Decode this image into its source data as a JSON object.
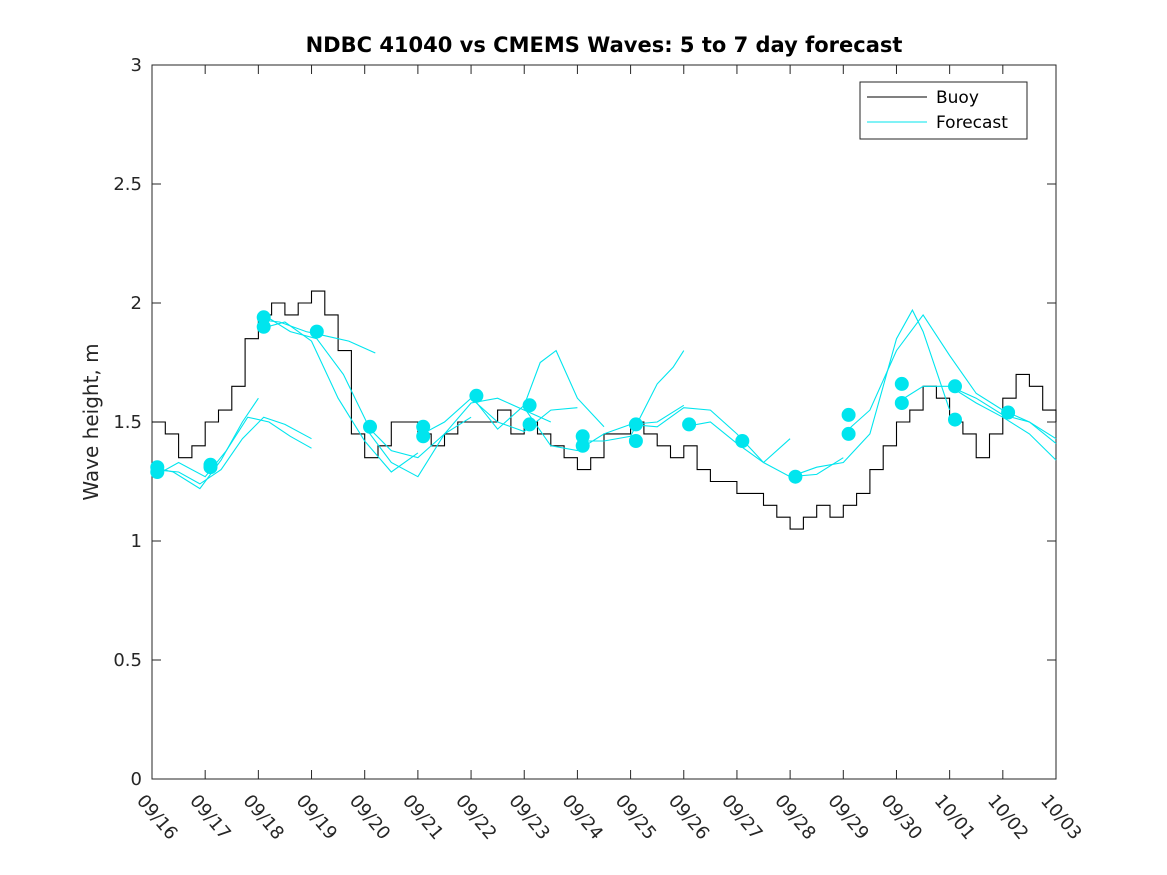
{
  "chart_data": {
    "type": "line",
    "title": "NDBC 41040 vs CMEMS Waves: 5 to 7 day forecast",
    "xlabel": "",
    "ylabel": "Wave height, m",
    "ylim": [
      0,
      3
    ],
    "xlim": [
      0,
      17
    ],
    "yticks": [
      0,
      0.5,
      1,
      1.5,
      2,
      2.5,
      3
    ],
    "ytick_labels": [
      "0",
      "0.5",
      "1",
      "1.5",
      "2",
      "2.5",
      "3"
    ],
    "xtick_labels": [
      "09/16",
      "09/17",
      "09/18",
      "09/19",
      "09/20",
      "09/21",
      "09/22",
      "09/23",
      "09/24",
      "09/25",
      "09/26",
      "09/27",
      "09/28",
      "09/29",
      "09/30",
      "10/01",
      "10/02",
      "10/03"
    ],
    "legend": {
      "position": "top-right",
      "entries": [
        {
          "label": "Buoy",
          "color": "#000000"
        },
        {
          "label": "Forecast",
          "color": "#00e5ee"
        }
      ]
    },
    "buoy": {
      "name": "Buoy",
      "color": "#000000",
      "x": [
        0.0,
        0.25,
        0.5,
        0.75,
        1.0,
        1.25,
        1.5,
        1.75,
        2.0,
        2.25,
        2.5,
        2.75,
        3.0,
        3.25,
        3.5,
        3.75,
        4.0,
        4.25,
        4.5,
        4.75,
        5.0,
        5.25,
        5.5,
        5.75,
        6.0,
        6.25,
        6.5,
        6.75,
        7.0,
        7.25,
        7.5,
        7.75,
        8.0,
        8.25,
        8.5,
        8.75,
        9.0,
        9.25,
        9.5,
        9.75,
        10.0,
        10.25,
        10.5,
        10.75,
        11.0,
        11.25,
        11.5,
        11.75,
        12.0,
        12.25,
        12.5,
        12.75,
        13.0,
        13.25,
        13.5,
        13.75,
        14.0,
        14.25,
        14.5,
        14.75,
        15.0,
        15.25,
        15.5,
        15.75,
        16.0,
        16.25,
        16.5,
        16.75,
        17.0
      ],
      "y": [
        1.5,
        1.45,
        1.35,
        1.4,
        1.5,
        1.55,
        1.65,
        1.85,
        1.95,
        2.0,
        1.95,
        2.0,
        2.05,
        1.95,
        1.8,
        1.45,
        1.35,
        1.4,
        1.5,
        1.5,
        1.45,
        1.4,
        1.45,
        1.5,
        1.5,
        1.5,
        1.55,
        1.45,
        1.5,
        1.45,
        1.4,
        1.35,
        1.3,
        1.35,
        1.45,
        1.45,
        1.5,
        1.45,
        1.4,
        1.35,
        1.4,
        1.3,
        1.25,
        1.25,
        1.2,
        1.2,
        1.15,
        1.1,
        1.05,
        1.1,
        1.15,
        1.1,
        1.15,
        1.2,
        1.3,
        1.4,
        1.5,
        1.55,
        1.65,
        1.6,
        1.5,
        1.45,
        1.35,
        1.45,
        1.6,
        1.7,
        1.65,
        1.55,
        1.5
      ]
    },
    "forecast_series": [
      {
        "name": "Forecast",
        "x": [
          0.0,
          0.5,
          0.9,
          1.3,
          1.7,
          2.1,
          2.5,
          3.0
        ],
        "y": [
          1.3,
          1.29,
          1.24,
          1.3,
          1.43,
          1.52,
          1.49,
          1.43
        ]
      },
      {
        "name": "Forecast",
        "x": [
          0.1,
          0.5,
          1.0,
          1.4,
          1.8,
          2.2,
          2.6,
          3.0
        ],
        "y": [
          1.28,
          1.33,
          1.27,
          1.38,
          1.52,
          1.5,
          1.44,
          1.39
        ]
      },
      {
        "name": "Forecast",
        "x": [
          0.0,
          0.4,
          0.9,
          1.3,
          1.7,
          2.0
        ],
        "y": [
          1.31,
          1.29,
          1.22,
          1.34,
          1.5,
          1.6
        ]
      },
      {
        "name": "Forecast",
        "x": [
          2.0,
          2.4,
          2.9,
          3.3,
          3.7,
          4.2
        ],
        "y": [
          1.93,
          1.92,
          1.88,
          1.86,
          1.84,
          1.79
        ]
      },
      {
        "name": "Forecast",
        "x": [
          2.0,
          2.5,
          3.0,
          3.5,
          4.0,
          4.5,
          5.0
        ],
        "y": [
          1.89,
          1.92,
          1.84,
          1.6,
          1.42,
          1.29,
          1.37
        ]
      },
      {
        "name": "Forecast",
        "x": [
          2.1,
          2.6,
          3.1,
          3.6,
          4.1,
          4.5,
          5.0,
          5.5,
          6.0
        ],
        "y": [
          1.95,
          1.88,
          1.85,
          1.7,
          1.47,
          1.38,
          1.35,
          1.45,
          1.52
        ]
      },
      {
        "name": "Forecast",
        "x": [
          4.0,
          4.5,
          5.0,
          5.5,
          6.0,
          6.5,
          7.0,
          7.5
        ],
        "y": [
          1.48,
          1.33,
          1.27,
          1.45,
          1.58,
          1.6,
          1.55,
          1.5
        ]
      },
      {
        "name": "Forecast",
        "x": [
          5.0,
          5.5,
          6.0,
          6.5,
          7.0,
          7.5,
          8.0
        ],
        "y": [
          1.44,
          1.5,
          1.6,
          1.5,
          1.46,
          1.55,
          1.56
        ]
      },
      {
        "name": "Forecast",
        "x": [
          6.0,
          6.5,
          7.0,
          7.3,
          7.6,
          8.0,
          8.5
        ],
        "y": [
          1.61,
          1.47,
          1.57,
          1.75,
          1.8,
          1.6,
          1.48
        ]
      },
      {
        "name": "Forecast",
        "x": [
          7.0,
          7.5,
          8.0,
          8.5,
          9.0,
          9.5,
          10.0
        ],
        "y": [
          1.56,
          1.4,
          1.38,
          1.45,
          1.49,
          1.5,
          1.57
        ]
      },
      {
        "name": "Forecast",
        "x": [
          8.0,
          8.5,
          9.0,
          9.5,
          9.8,
          10.0
        ],
        "y": [
          1.42,
          1.42,
          1.44,
          1.66,
          1.73,
          1.8
        ]
      },
      {
        "name": "Forecast",
        "x": [
          9.0,
          9.5,
          10.0,
          10.5,
          11.0,
          11.5,
          12.0
        ],
        "y": [
          1.49,
          1.48,
          1.56,
          1.55,
          1.45,
          1.33,
          1.43
        ]
      },
      {
        "name": "Forecast",
        "x": [
          10.0,
          10.5,
          11.0,
          11.5,
          12.0,
          12.5,
          13.0
        ],
        "y": [
          1.48,
          1.5,
          1.41,
          1.33,
          1.27,
          1.28,
          1.35
        ]
      },
      {
        "name": "Forecast",
        "x": [
          12.0,
          12.5,
          13.0,
          13.5,
          14.0,
          14.3,
          14.5,
          15.0
        ],
        "y": [
          1.27,
          1.31,
          1.33,
          1.45,
          1.85,
          1.97,
          1.88,
          1.55
        ]
      },
      {
        "name": "Forecast",
        "x": [
          13.0,
          13.5,
          14.0,
          14.5,
          15.0,
          15.5,
          16.0,
          16.5,
          17.0
        ],
        "y": [
          1.45,
          1.55,
          1.8,
          1.95,
          1.78,
          1.62,
          1.55,
          1.5,
          1.43
        ]
      },
      {
        "name": "Forecast",
        "x": [
          14.0,
          14.5,
          15.0,
          15.5,
          16.0,
          16.5,
          17.0
        ],
        "y": [
          1.58,
          1.65,
          1.65,
          1.58,
          1.52,
          1.45,
          1.34
        ]
      },
      {
        "name": "Forecast",
        "x": [
          15.0,
          15.5,
          16.0,
          16.5,
          17.0
        ],
        "y": [
          1.65,
          1.6,
          1.53,
          1.5,
          1.41
        ]
      }
    ],
    "forecast_markers": {
      "name": "Forecast start points",
      "color": "#00e5ee",
      "x": [
        0.1,
        0.1,
        1.1,
        1.1,
        2.1,
        2.1,
        3.1,
        4.1,
        5.1,
        5.1,
        6.1,
        7.1,
        7.1,
        8.1,
        8.1,
        9.1,
        9.1,
        10.1,
        11.1,
        12.1,
        13.1,
        13.1,
        14.1,
        14.1,
        15.1,
        15.1,
        16.1
      ],
      "y": [
        1.31,
        1.29,
        1.32,
        1.31,
        1.94,
        1.9,
        1.88,
        1.48,
        1.48,
        1.44,
        1.61,
        1.57,
        1.49,
        1.44,
        1.4,
        1.49,
        1.42,
        1.49,
        1.42,
        1.27,
        1.53,
        1.45,
        1.66,
        1.58,
        1.65,
        1.51,
        1.54
      ]
    }
  }
}
